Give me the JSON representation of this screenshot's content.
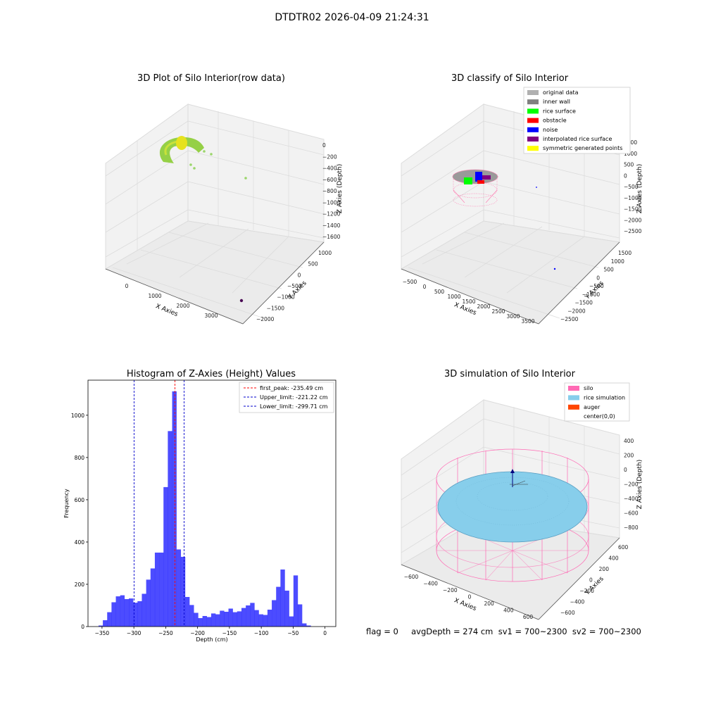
{
  "suptitle": "DTDTR02 2026-04-09 21:24:31",
  "panel_tl": {
    "title": "3D Plot of Silo Interior(row data)",
    "xlabel": "X Axies",
    "ylabel": "Y Axies",
    "zlabel": "Z Axies (Depth)",
    "xticks": [
      "0",
      "1000",
      "2000",
      "3000"
    ],
    "yticks": [
      "1000",
      "500",
      "0",
      "−500",
      "−1000",
      "−1500",
      "−2000"
    ],
    "zticks": [
      "0",
      "−200",
      "−400",
      "−600",
      "−800",
      "−1000",
      "−1200",
      "−1400",
      "−1600"
    ]
  },
  "panel_tr": {
    "title": "3D classify of Silo Interior",
    "xlabel": "X Axies",
    "ylabel": "Y Axies",
    "zlabel": "Z Axies (Depth)",
    "xticks": [
      "−500",
      "0",
      "500",
      "1000",
      "1500",
      "2000",
      "2500",
      "3000",
      "3500"
    ],
    "yticks": [
      "1500",
      "1000",
      "500",
      "0",
      "−500",
      "−1000",
      "−1500",
      "−2000",
      "−2500"
    ],
    "zticks": [
      "1500",
      "1000",
      "500",
      "0",
      "−500",
      "−1000",
      "−1500",
      "−2000",
      "−2500"
    ],
    "legend": [
      {
        "label": "original data",
        "color": "#b0b0b0"
      },
      {
        "label": "inner wall",
        "color": "#808080"
      },
      {
        "label": "rice surface",
        "color": "#00ff00"
      },
      {
        "label": "obstacle",
        "color": "#ff0000"
      },
      {
        "label": "noise",
        "color": "#0000ff"
      },
      {
        "label": "interpolated rice surface",
        "color": "#800080"
      },
      {
        "label": "symmetric generated points",
        "color": "#ffff00"
      }
    ]
  },
  "panel_br": {
    "title": "3D simulation of Silo Interior",
    "xlabel": "X Axies",
    "ylabel": "Y Axies",
    "zlabel": "Z Axies (Depth)",
    "xticks": [
      "−600",
      "−400",
      "−200",
      "0",
      "200",
      "400",
      "600"
    ],
    "yticks": [
      "600",
      "400",
      "200",
      "0",
      "−200",
      "−400",
      "−600"
    ],
    "zticks": [
      "400",
      "200",
      "0",
      "−200",
      "−400",
      "−600",
      "−800"
    ],
    "legend": [
      {
        "label": "silo",
        "color": "#ff69b4"
      },
      {
        "label": "rice simulation",
        "color": "#87ceeb"
      },
      {
        "label": "auger",
        "color": "#ff4500"
      },
      {
        "label": "center(0,0)",
        "color": "#ffffff"
      }
    ]
  },
  "bottom_status": "flag = 0     avgDepth = 274 cm  sv1 = 700~2300  sv2 = 700~2300",
  "chart_data": [
    {
      "type": "scatter",
      "title": "3D Plot of Silo Interior(row data)",
      "xlabel": "X Axies",
      "ylabel": "Y Axies",
      "zlabel": "Z Axies (Depth)",
      "xlim": [
        -500,
        3700
      ],
      "ylim": [
        -2000,
        1000
      ],
      "zlim": [
        -1700,
        100
      ]
    },
    {
      "type": "scatter",
      "title": "3D classify of Silo Interior",
      "xlabel": "X Axies",
      "ylabel": "Y Axies",
      "zlabel": "Z Axies (Depth)",
      "xlim": [
        -600,
        3700
      ],
      "ylim": [
        -2600,
        1700
      ],
      "zlim": [
        -2700,
        1600
      ],
      "series": [
        {
          "name": "original data"
        },
        {
          "name": "inner wall"
        },
        {
          "name": "rice surface"
        },
        {
          "name": "obstacle"
        },
        {
          "name": "noise"
        },
        {
          "name": "interpolated rice surface"
        },
        {
          "name": "symmetric generated points"
        }
      ]
    },
    {
      "type": "bar",
      "title": "Histogram of Z-Axies (Height) Values",
      "xlabel": "Depth (cm)",
      "ylabel": "Frequency",
      "xlim": [
        -372,
        17
      ],
      "ylim": [
        0,
        1166
      ],
      "xticks": [
        -350,
        -300,
        -250,
        -200,
        -150,
        -100,
        -50,
        0
      ],
      "yticks": [
        0,
        200,
        400,
        600,
        800,
        1000
      ],
      "bin_start": -355.5,
      "bin_width": 6.8,
      "values": [
        5,
        30,
        68,
        115,
        143,
        148,
        130,
        133,
        113,
        120,
        155,
        222,
        275,
        350,
        350,
        660,
        925,
        1113,
        365,
        330,
        140,
        102,
        65,
        40,
        50,
        45,
        62,
        58,
        75,
        70,
        85,
        68,
        72,
        88,
        100,
        112,
        78,
        58,
        55,
        80,
        125,
        188,
        270,
        170,
        48,
        242,
        105,
        15,
        5
      ],
      "color": "#0000ff",
      "vlines": [
        {
          "name": "first_peak",
          "label": "first_peak: -235.49 cm",
          "x": -235.49,
          "color": "#ff0000"
        },
        {
          "name": "upper_limit",
          "label": "Upper_limit: -221.22 cm",
          "x": -221.22,
          "color": "#0000cc"
        },
        {
          "name": "lower_limit",
          "label": "Lower_limit: -299.71 cm",
          "x": -299.71,
          "color": "#0000cc"
        }
      ]
    },
    {
      "type": "scatter",
      "title": "3D simulation of Silo Interior",
      "xlabel": "X Axies",
      "ylabel": "Y Axies",
      "zlabel": "Z Axies (Depth)",
      "xlim": [
        -650,
        650
      ],
      "ylim": [
        -650,
        650
      ],
      "zlim": [
        -900,
        450
      ],
      "series": [
        {
          "name": "silo"
        },
        {
          "name": "rice simulation"
        },
        {
          "name": "auger"
        },
        {
          "name": "center(0,0)"
        }
      ]
    }
  ]
}
